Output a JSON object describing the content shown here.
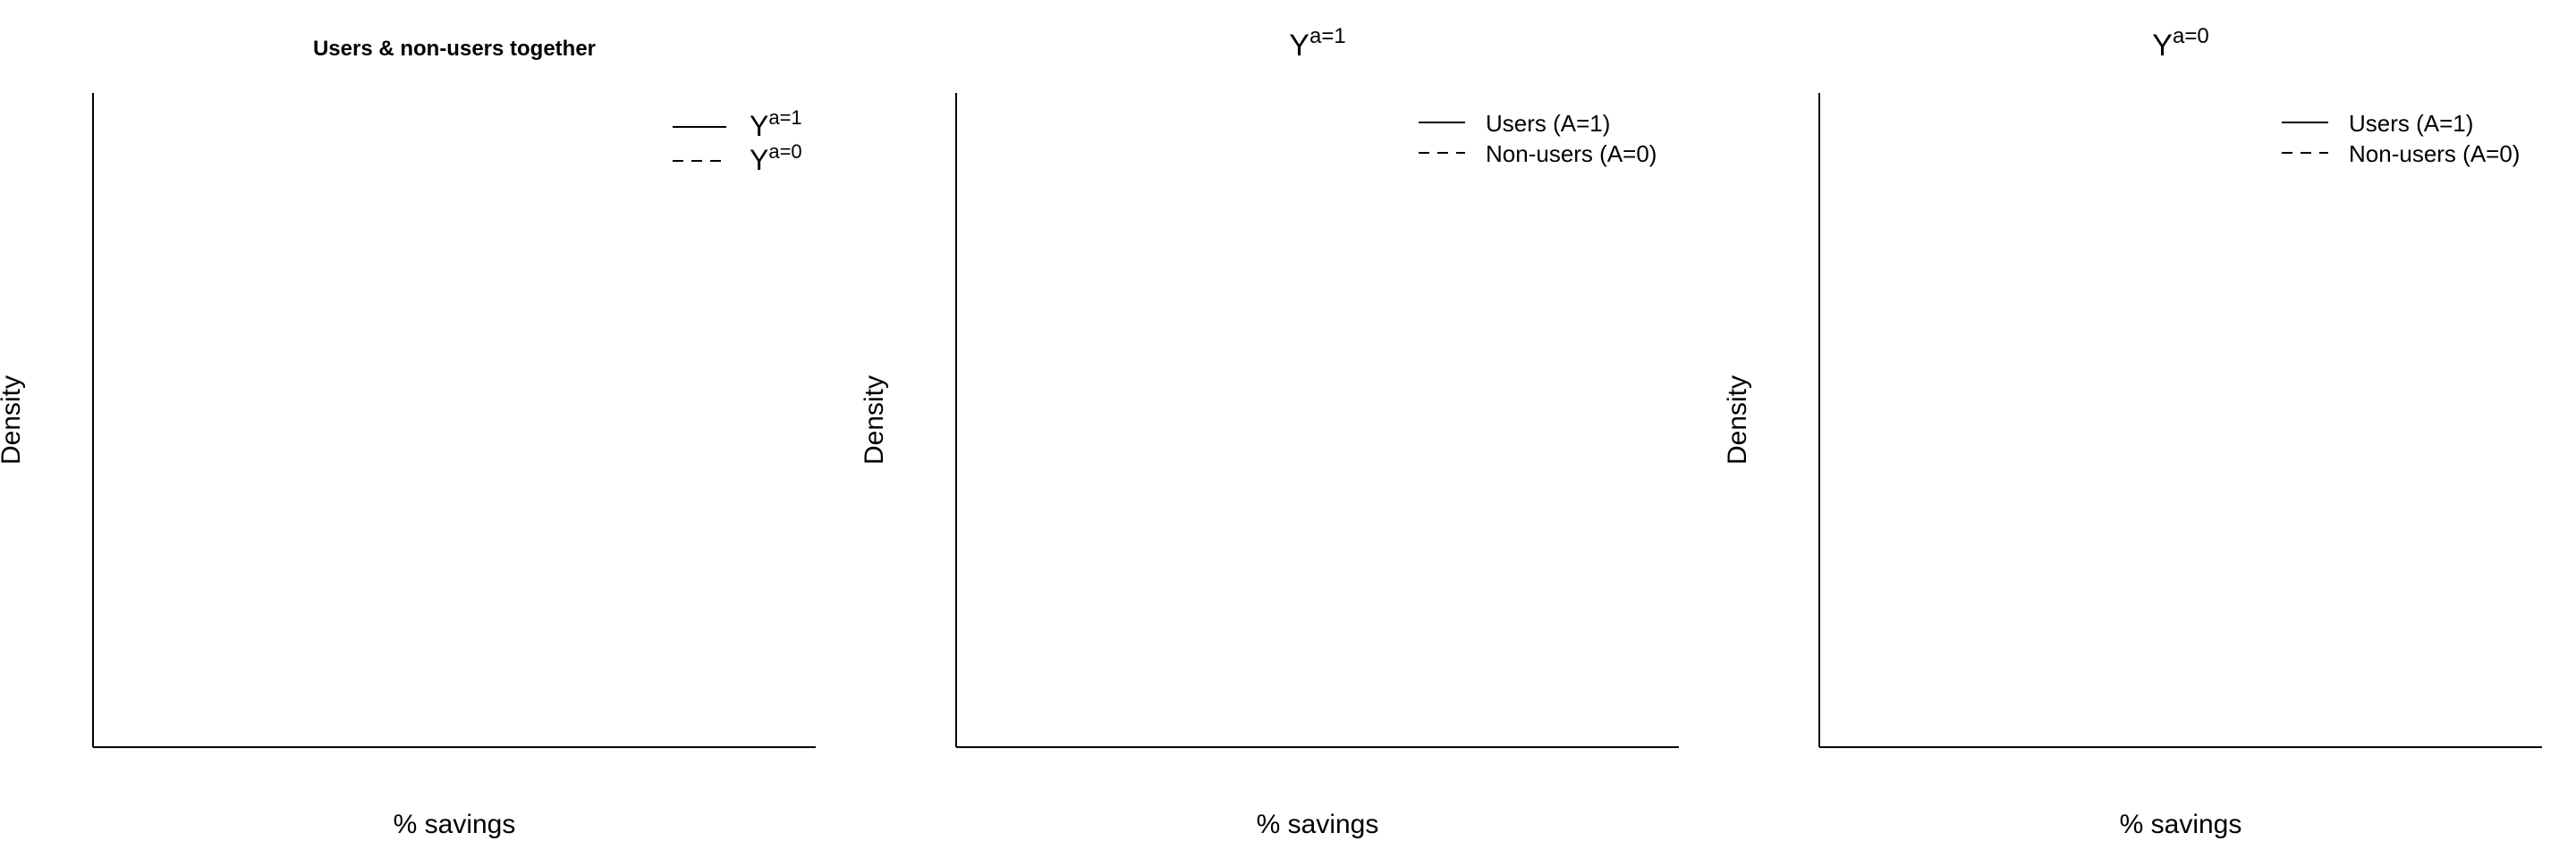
{
  "panels": [
    {
      "title_main": "Users & non-users together",
      "title_sup": "",
      "title_bold": true,
      "xlabel": "% savings",
      "ylabel": "Density",
      "legend": [
        {
          "label": "Y",
          "sup": "a=1",
          "style": "solid"
        },
        {
          "label": "Y",
          "sup": "a=0",
          "style": "dashed"
        }
      ]
    },
    {
      "title_main": "Y",
      "title_sup": "a=1",
      "title_bold": false,
      "xlabel": "% savings",
      "ylabel": "Density",
      "legend": [
        {
          "label": "Users (A=1)",
          "sup": "",
          "style": "solid"
        },
        {
          "label": "Non-users (A=0)",
          "sup": "",
          "style": "dashed"
        }
      ]
    },
    {
      "title_main": "Y",
      "title_sup": "a=0",
      "title_bold": false,
      "xlabel": "% savings",
      "ylabel": "Density",
      "legend": [
        {
          "label": "Users (A=1)",
          "sup": "",
          "style": "solid"
        },
        {
          "label": "Non-users (A=0)",
          "sup": "",
          "style": "dashed"
        }
      ]
    }
  ],
  "chart_data": [
    {
      "type": "line",
      "title": "Users & non-users together",
      "xlabel": "% savings",
      "ylabel": "Density",
      "legend_position": "top-right",
      "grid": false,
      "series": [
        {
          "name": "Y^{a=1}",
          "line_style": "solid",
          "x": [],
          "y": []
        },
        {
          "name": "Y^{a=0}",
          "line_style": "dashed",
          "x": [],
          "y": []
        }
      ]
    },
    {
      "type": "line",
      "title": "Y^{a=1}",
      "xlabel": "% savings",
      "ylabel": "Density",
      "legend_position": "top-right",
      "grid": false,
      "series": [
        {
          "name": "Users (A=1)",
          "line_style": "solid",
          "x": [],
          "y": []
        },
        {
          "name": "Non-users (A=0)",
          "line_style": "dashed",
          "x": [],
          "y": []
        }
      ]
    },
    {
      "type": "line",
      "title": "Y^{a=0}",
      "xlabel": "% savings",
      "ylabel": "Density",
      "legend_position": "top-right",
      "grid": false,
      "series": [
        {
          "name": "Users (A=1)",
          "line_style": "solid",
          "x": [],
          "y": []
        },
        {
          "name": "Non-users (A=0)",
          "line_style": "dashed",
          "x": [],
          "y": []
        }
      ]
    }
  ]
}
